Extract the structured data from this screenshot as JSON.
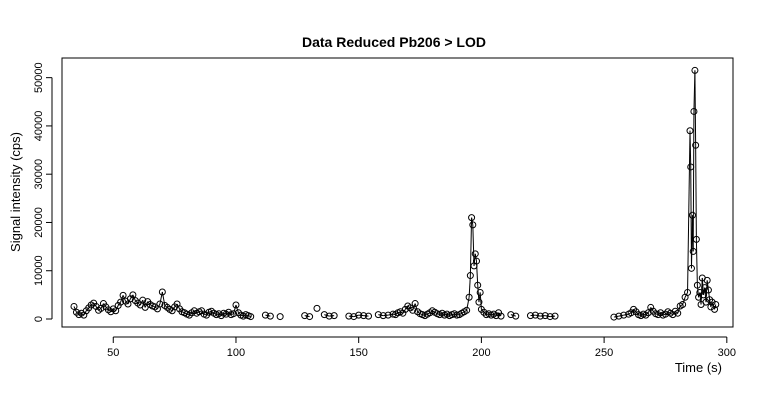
{
  "chart_data": {
    "type": "scatter",
    "title": "Data Reduced Pb206 > LOD",
    "xlabel": "Time (s)",
    "ylabel": "Signal intensity (cps)",
    "xlim": [
      34,
      296
    ],
    "ylim": [
      0,
      52000
    ],
    "x_ticks": [
      50,
      100,
      150,
      200,
      250,
      300
    ],
    "y_ticks": [
      0,
      10000,
      20000,
      30000,
      40000,
      50000
    ],
    "markers": "open circles",
    "line_segments": "connected where consecutive points are close in time",
    "grid": false,
    "legend": "none",
    "series": [
      {
        "points": [
          [
            34,
            2600
          ],
          [
            35,
            1400
          ],
          [
            36,
            900
          ],
          [
            37,
            1200
          ],
          [
            38,
            800
          ],
          [
            39,
            1700
          ],
          [
            40,
            2300
          ],
          [
            41,
            2900
          ],
          [
            42,
            3300
          ],
          [
            43,
            2600
          ],
          [
            44,
            1800
          ],
          [
            45,
            2200
          ],
          [
            46,
            3200
          ],
          [
            47,
            2500
          ],
          [
            48,
            1900
          ],
          [
            49,
            1500
          ],
          [
            50,
            2100
          ],
          [
            51,
            1700
          ],
          [
            52,
            2800
          ],
          [
            53,
            3500
          ],
          [
            54,
            4900
          ],
          [
            55,
            3700
          ],
          [
            56,
            3100
          ],
          [
            57,
            4200
          ],
          [
            58,
            5000
          ],
          [
            59,
            3800
          ],
          [
            60,
            3300
          ],
          [
            61,
            2900
          ],
          [
            62,
            3900
          ],
          [
            63,
            2400
          ],
          [
            64,
            3600
          ],
          [
            65,
            3000
          ],
          [
            66,
            2700
          ],
          [
            67,
            2500
          ],
          [
            68,
            2100
          ],
          [
            69,
            3100
          ],
          [
            70,
            5600
          ],
          [
            71,
            2800
          ],
          [
            72,
            2400
          ],
          [
            73,
            2000
          ],
          [
            74,
            1700
          ],
          [
            75,
            2500
          ],
          [
            76,
            3100
          ],
          [
            77,
            2100
          ],
          [
            78,
            1500
          ],
          [
            79,
            1300
          ],
          [
            80,
            1000
          ],
          [
            81,
            800
          ],
          [
            82,
            1300
          ],
          [
            83,
            1700
          ],
          [
            84,
            1200
          ],
          [
            85,
            1500
          ],
          [
            86,
            1700
          ],
          [
            87,
            1000
          ],
          [
            88,
            800
          ],
          [
            89,
            1400
          ],
          [
            90,
            1600
          ],
          [
            91,
            1200
          ],
          [
            92,
            900
          ],
          [
            93,
            1100
          ],
          [
            94,
            700
          ],
          [
            95,
            1200
          ],
          [
            96,
            1000
          ],
          [
            97,
            1400
          ],
          [
            98,
            900
          ],
          [
            99,
            1100
          ],
          [
            100,
            2900
          ],
          [
            101,
            1300
          ],
          [
            102,
            800
          ],
          [
            103,
            600
          ],
          [
            104,
            900
          ],
          [
            105,
            700
          ],
          [
            106,
            500
          ],
          [
            112,
            800
          ],
          [
            114,
            600
          ],
          [
            118,
            500
          ],
          [
            128,
            700
          ],
          [
            130,
            500
          ],
          [
            133,
            2200
          ],
          [
            136,
            900
          ],
          [
            138,
            600
          ],
          [
            140,
            700
          ],
          [
            146,
            600
          ],
          [
            148,
            500
          ],
          [
            150,
            800
          ],
          [
            152,
            700
          ],
          [
            154,
            600
          ],
          [
            158,
            900
          ],
          [
            160,
            700
          ],
          [
            162,
            800
          ],
          [
            164,
            1000
          ],
          [
            165,
            900
          ],
          [
            166,
            1300
          ],
          [
            167,
            1500
          ],
          [
            168,
            1200
          ],
          [
            169,
            2000
          ],
          [
            170,
            2700
          ],
          [
            171,
            2300
          ],
          [
            172,
            1800
          ],
          [
            173,
            3200
          ],
          [
            174,
            1500
          ],
          [
            175,
            1100
          ],
          [
            176,
            900
          ],
          [
            177,
            700
          ],
          [
            178,
            1000
          ],
          [
            179,
            1300
          ],
          [
            180,
            1700
          ],
          [
            181,
            1400
          ],
          [
            182,
            1100
          ],
          [
            183,
            900
          ],
          [
            184,
            1200
          ],
          [
            185,
            800
          ],
          [
            186,
            1000
          ],
          [
            187,
            700
          ],
          [
            188,
            900
          ],
          [
            189,
            1100
          ],
          [
            190,
            800
          ],
          [
            191,
            900
          ],
          [
            192,
            1200
          ],
          [
            193,
            1500
          ],
          [
            194,
            1800
          ],
          [
            195,
            4500
          ],
          [
            195.5,
            9000
          ],
          [
            196,
            21000
          ],
          [
            196.5,
            19500
          ],
          [
            197,
            11000
          ],
          [
            197.5,
            13500
          ],
          [
            198,
            12000
          ],
          [
            198.5,
            7000
          ],
          [
            199,
            3500
          ],
          [
            199.5,
            5500
          ],
          [
            200,
            2000
          ],
          [
            201,
            1400
          ],
          [
            202,
            900
          ],
          [
            203,
            1100
          ],
          [
            204,
            800
          ],
          [
            205,
            1000
          ],
          [
            206,
            700
          ],
          [
            207,
            1300
          ],
          [
            208,
            600
          ],
          [
            212,
            900
          ],
          [
            214,
            600
          ],
          [
            220,
            700
          ],
          [
            222,
            800
          ],
          [
            224,
            600
          ],
          [
            226,
            700
          ],
          [
            228,
            500
          ],
          [
            230,
            600
          ],
          [
            254,
            400
          ],
          [
            256,
            600
          ],
          [
            258,
            800
          ],
          [
            260,
            1000
          ],
          [
            261,
            1300
          ],
          [
            262,
            2000
          ],
          [
            263,
            1500
          ],
          [
            264,
            900
          ],
          [
            265,
            700
          ],
          [
            266,
            1000
          ],
          [
            267,
            800
          ],
          [
            268,
            1300
          ],
          [
            269,
            2400
          ],
          [
            270,
            1600
          ],
          [
            271,
            1100
          ],
          [
            272,
            900
          ],
          [
            273,
            1300
          ],
          [
            274,
            800
          ],
          [
            275,
            1000
          ],
          [
            276,
            1500
          ],
          [
            277,
            1200
          ],
          [
            278,
            900
          ],
          [
            279,
            1600
          ],
          [
            280,
            1200
          ],
          [
            281,
            2700
          ],
          [
            282,
            3000
          ],
          [
            283,
            4500
          ],
          [
            284,
            5500
          ],
          [
            285,
            39000
          ],
          [
            285.3,
            31500
          ],
          [
            285.6,
            10500
          ],
          [
            286,
            21500
          ],
          [
            286.3,
            14000
          ],
          [
            286.6,
            43000
          ],
          [
            287,
            51500
          ],
          [
            287.3,
            36000
          ],
          [
            287.6,
            16500
          ],
          [
            288,
            7000
          ],
          [
            288.5,
            4500
          ],
          [
            289,
            5500
          ],
          [
            289.5,
            3000
          ],
          [
            290,
            8500
          ],
          [
            290.5,
            5000
          ],
          [
            291,
            6500
          ],
          [
            291.5,
            3500
          ],
          [
            292,
            8000
          ],
          [
            292.5,
            6000
          ],
          [
            293,
            4000
          ],
          [
            293.5,
            2500
          ],
          [
            294,
            3500
          ],
          [
            295,
            2000
          ],
          [
            295.5,
            3000
          ]
        ]
      }
    ]
  }
}
